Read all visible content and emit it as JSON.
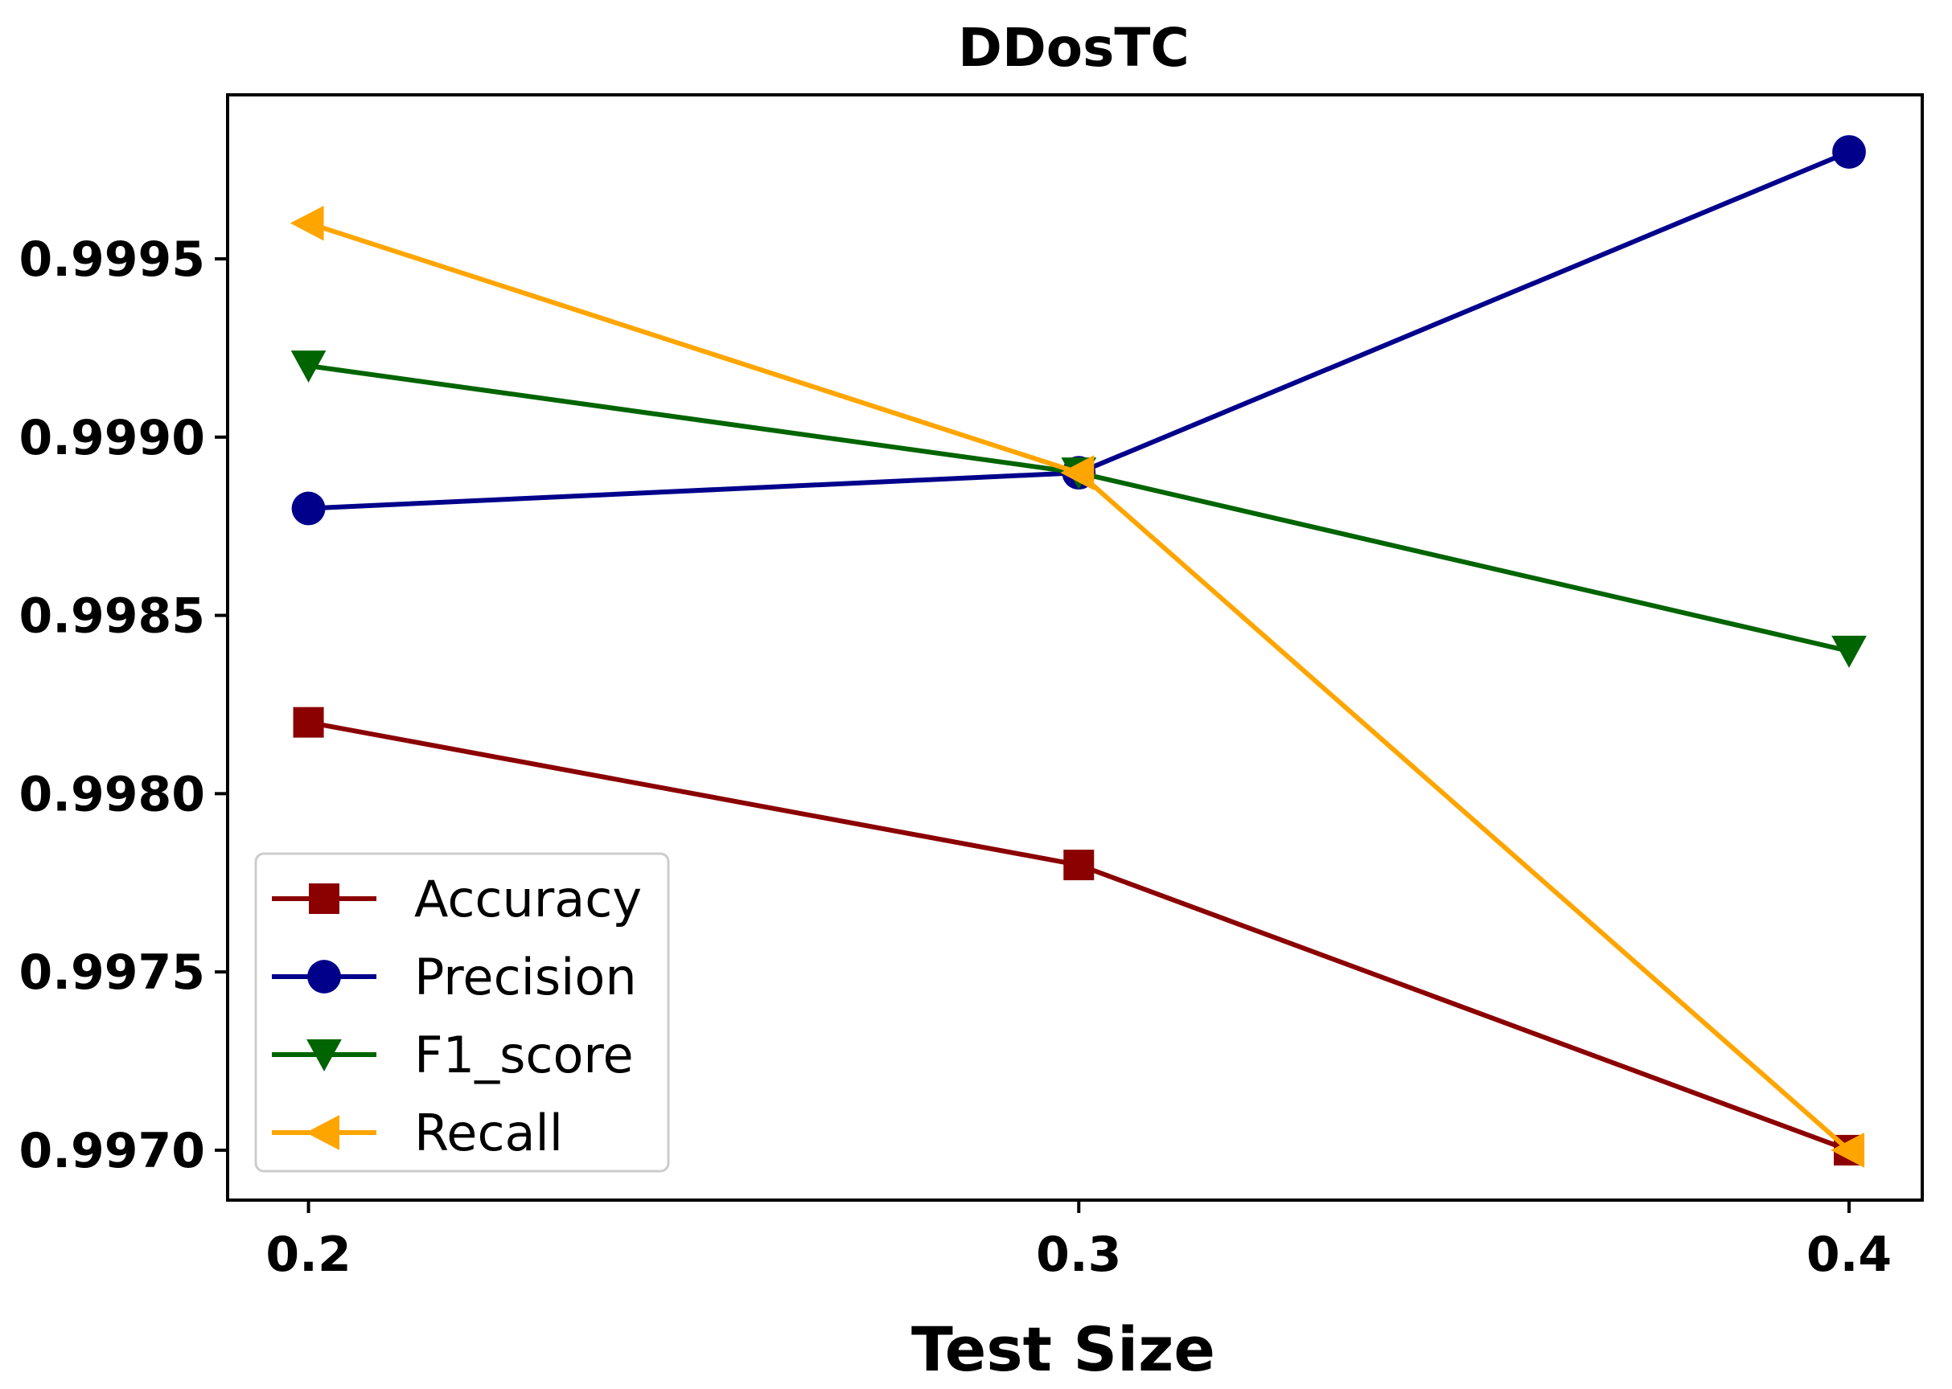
{
  "chart_data": {
    "type": "line",
    "title": "DDosTC",
    "xlabel": "Test Size",
    "ylabel": "",
    "x": [
      0.2,
      0.3,
      0.4
    ],
    "x_tick_labels": [
      "0.2",
      "0.3",
      "0.4"
    ],
    "xlim": [
      0.1895,
      0.4095
    ],
    "y_ticks": [
      0.997,
      0.9975,
      0.998,
      0.9985,
      0.999,
      0.9995
    ],
    "y_tick_labels": [
      "0.9970",
      "0.9975",
      "0.9980",
      "0.9985",
      "0.9990",
      "0.9995"
    ],
    "ylim": [
      0.99686,
      0.99996
    ],
    "grid": false,
    "legend_position": "lower-left",
    "series": [
      {
        "name": "Accuracy",
        "marker": "square",
        "color": "#8b0000",
        "values": [
          0.9982,
          0.9978,
          0.997
        ]
      },
      {
        "name": "Precision",
        "marker": "circle",
        "color": "#00008b",
        "values": [
          0.9988,
          0.9989,
          0.9998
        ]
      },
      {
        "name": "F1_score",
        "marker": "triangle-down",
        "color": "#006400",
        "values": [
          0.9992,
          0.9989,
          0.9984
        ]
      },
      {
        "name": "Recall",
        "marker": "triangle-left",
        "color": "#ffa500",
        "values": [
          0.9996,
          0.9989,
          0.997
        ]
      }
    ]
  }
}
